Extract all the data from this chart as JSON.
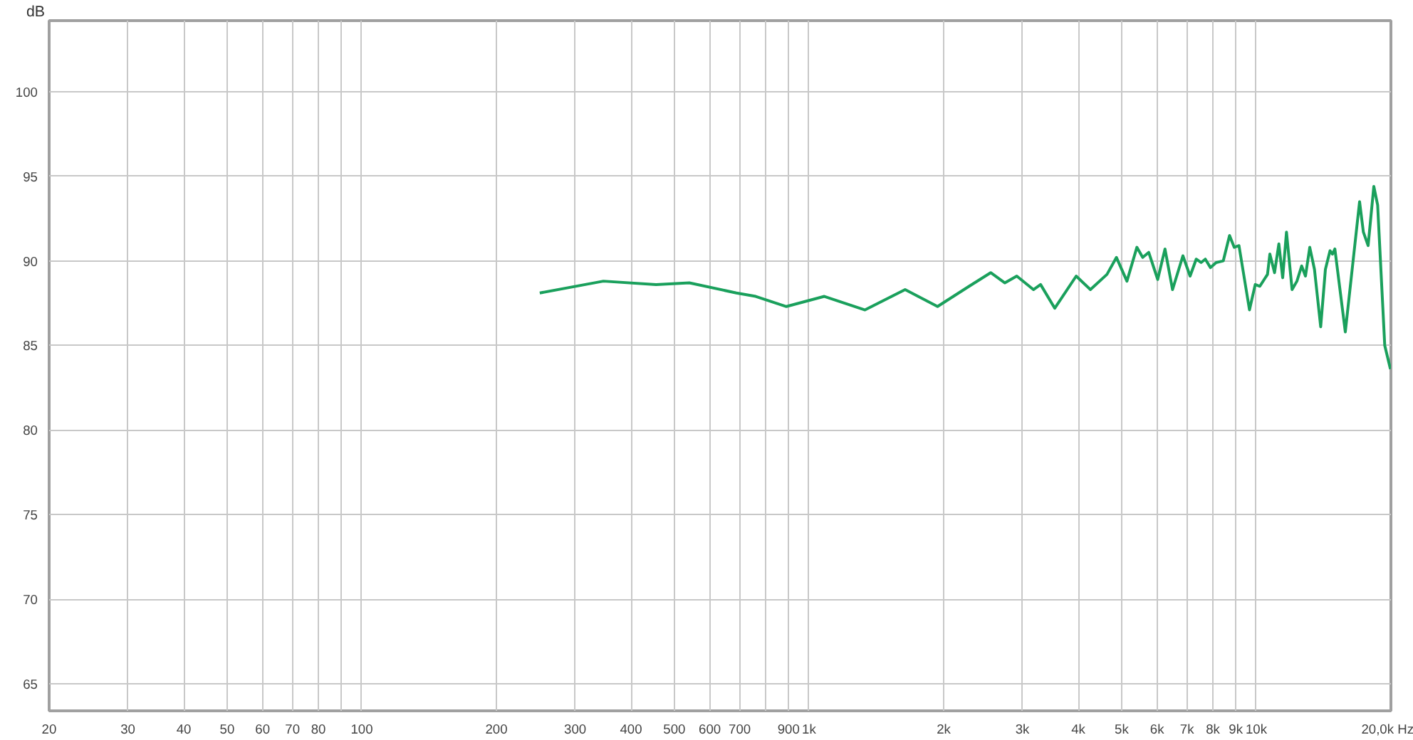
{
  "chart_data": {
    "type": "line",
    "ylabel": "dB",
    "log": "x",
    "grid": true,
    "line_style": "solid",
    "marker": "none",
    "xlim": [
      20,
      20000
    ],
    "ylim": [
      63.4,
      104.2
    ],
    "xticks": [
      20,
      30,
      40,
      50,
      60,
      70,
      80,
      {
        "value": 90,
        "label": null
      },
      {
        "value": 100,
        "label": "100"
      },
      200,
      300,
      400,
      500,
      600,
      700,
      {
        "value": 800,
        "label": null
      },
      900,
      {
        "value": 1000,
        "label": "1k"
      },
      {
        "value": 2000,
        "label": "2k"
      },
      {
        "value": 3000,
        "label": "3k"
      },
      {
        "value": 4000,
        "label": "4k"
      },
      {
        "value": 5000,
        "label": "5k"
      },
      {
        "value": 6000,
        "label": "6k"
      },
      {
        "value": 7000,
        "label": "7k"
      },
      {
        "value": 8000,
        "label": "8k"
      },
      {
        "value": 9000,
        "label": "9k"
      },
      {
        "value": 10000,
        "label": "10k"
      },
      {
        "value": 20000,
        "label": "20,0k Hz"
      }
    ],
    "yticks": [
      65,
      70,
      75,
      80,
      85,
      90,
      95,
      100
    ],
    "x": [
      250,
      347,
      455,
      540,
      688,
      760,
      890,
      1082,
      1334,
      1640,
      1938,
      2281,
      2548,
      2741,
      2914,
      3175,
      3294,
      3544,
      3957,
      4257,
      4636,
      4868,
      5138,
      5408,
      5572,
      5748,
      6020,
      6250,
      6498,
      6854,
      7112,
      7340,
      7526,
      7692,
      7900,
      8134,
      8438,
      8714,
      8926,
      9148,
      9656,
      9946,
      10186,
      10594,
      10724,
      10986,
      11232,
      11456,
      11682,
      12024,
      12328,
      12630,
      12882,
      13170,
      13492,
      13932,
      14274,
      14620,
      14800,
      14988,
      15814,
      17020,
      17356,
      17784,
      18314,
      18678,
      19374,
      19950
    ],
    "series": [
      {
        "color": "#1aa05c",
        "values": [
          88.1,
          88.8,
          88.6,
          88.7,
          88.1,
          87.9,
          87.3,
          87.9,
          87.1,
          88.3,
          87.3,
          88.5,
          89.3,
          88.7,
          89.1,
          88.3,
          88.6,
          87.2,
          89.1,
          88.3,
          89.2,
          90.2,
          88.8,
          90.8,
          90.2,
          90.5,
          88.9,
          90.7,
          88.3,
          90.3,
          89.1,
          90.1,
          89.9,
          90.1,
          89.6,
          89.9,
          90.0,
          91.5,
          90.8,
          90.9,
          87.1,
          88.6,
          88.5,
          89.2,
          90.4,
          89.3,
          91.0,
          89.0,
          91.7,
          88.3,
          88.8,
          89.7,
          89.1,
          90.8,
          89.5,
          86.1,
          89.5,
          90.6,
          90.4,
          90.7,
          85.8,
          93.5,
          91.7,
          90.9,
          94.4,
          93.3,
          85.0,
          83.6
        ]
      }
    ]
  }
}
